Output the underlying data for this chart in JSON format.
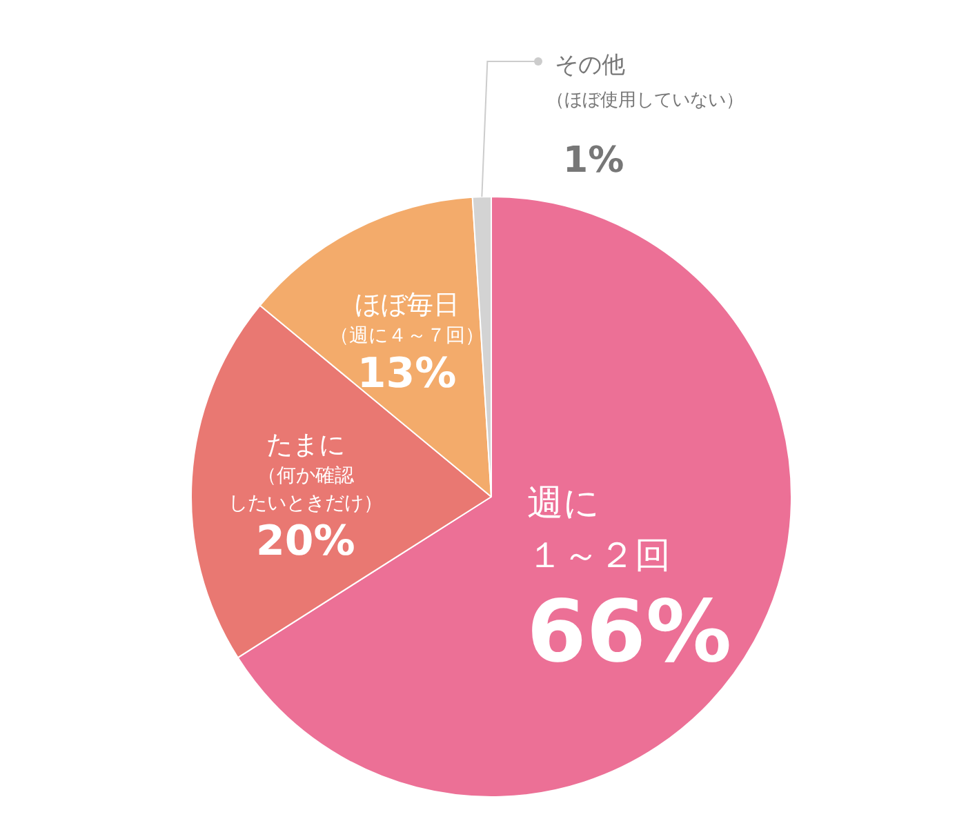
{
  "chart_data": {
    "type": "pie",
    "categories": [
      "週に１～２回",
      "たまに（何か確認したいときだけ）",
      "ほぼ毎日（週に４～７回）",
      "その他（ほぼ使用していない）"
    ],
    "values": [
      66,
      20,
      13,
      1
    ],
    "colors": [
      "#ec7096",
      "#e97872",
      "#f3ab6b",
      "#d3d3d3"
    ],
    "value_labels": [
      "66%",
      "20%",
      "13%",
      "1%"
    ]
  }
}
